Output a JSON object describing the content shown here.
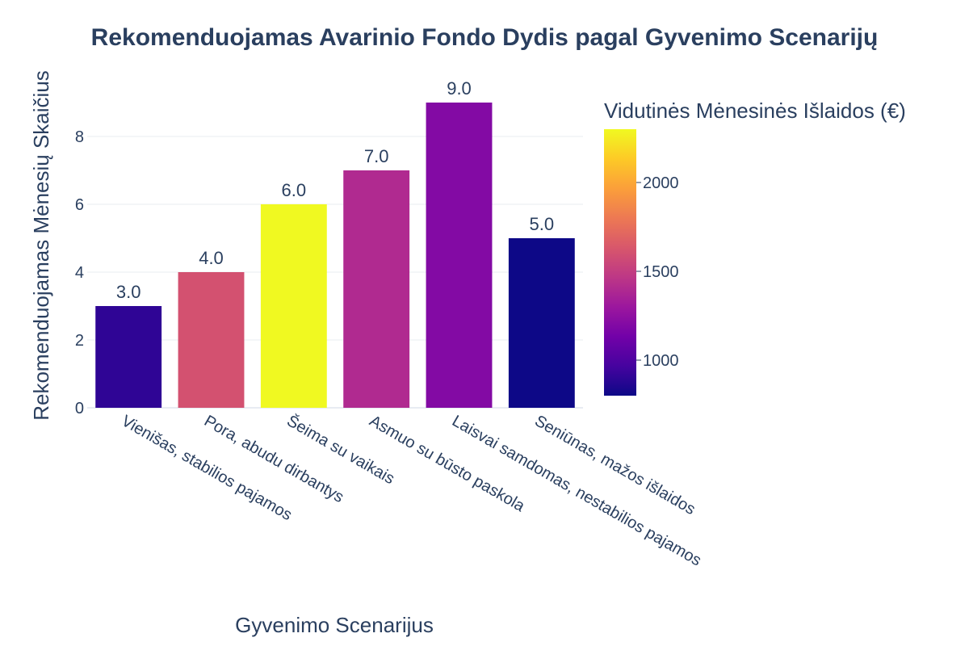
{
  "chart_data": {
    "type": "bar",
    "title": "Rekomenduojamas Avarinio Fondo Dydis pagal Gyvenimo Scenarijų",
    "xlabel": "Gyvenimo Scenarijus",
    "ylabel": "Rekomenduojamas Mėnesių Skaičius",
    "categories": [
      "Vienišas, stabilios pajamos",
      "Pora, abudu dirbantys",
      "Šeima su vaikais",
      "Asmuo su būsto paskola",
      "Laisvai samdomas, nestabilios pajamos",
      "Seniūnas, mažos išlaidos"
    ],
    "values": [
      3,
      4,
      6,
      7,
      9,
      5
    ],
    "value_labels": [
      "3.0",
      "4.0",
      "6.0",
      "7.0",
      "9.0",
      "5.0"
    ],
    "color_values": [
      900,
      1600,
      2300,
      1400,
      1200,
      800
    ],
    "ylim": [
      0,
      9.5
    ],
    "yticks": [
      0,
      2,
      4,
      6,
      8
    ],
    "ytick_labels": [
      "0",
      "2",
      "4",
      "6",
      "8"
    ],
    "grid": true,
    "colorbar": {
      "title": "Vidutinės Mėnesinės Išlaidos (€)",
      "range": [
        800,
        2300
      ],
      "ticks": [
        1000,
        1500,
        2000
      ],
      "tick_labels": [
        "1000",
        "1500",
        "2000"
      ],
      "colorscale": "plasma",
      "colors": [
        "#0d0887",
        "#46039f",
        "#7201a8",
        "#9c179e",
        "#bd3786",
        "#d8576b",
        "#ed7953",
        "#fb9f3a",
        "#fdca26",
        "#f0f921"
      ]
    }
  }
}
